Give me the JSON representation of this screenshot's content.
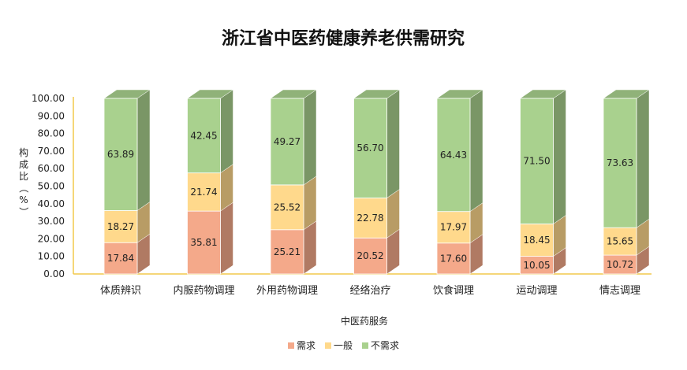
{
  "chart_data": {
    "type": "bar",
    "stacked": true,
    "style": "3d",
    "title": "浙江省中医药健康养老供需研究",
    "xlabel": "中医药服务",
    "ylabel": "构成比（%）",
    "ylim": [
      0,
      100
    ],
    "yticks": [
      "0.00",
      "10.00",
      "20.00",
      "30.00",
      "40.00",
      "50.00",
      "60.00",
      "70.00",
      "80.00",
      "90.00",
      "100.00"
    ],
    "grid": false,
    "legend_position": "bottom",
    "categories": [
      "体质辨识",
      "内服药物调理",
      "外用药物调理",
      "经络治疗",
      "饮食调理",
      "运动调理",
      "情志调理"
    ],
    "series": [
      {
        "name": "需求",
        "values": [
          17.84,
          35.81,
          25.21,
          20.52,
          17.6,
          10.05,
          10.72
        ],
        "labels": [
          "17.84",
          "35.81",
          "25.21",
          "20.52",
          "17.60",
          "10.05",
          "10.72"
        ],
        "color": "#f4a98a"
      },
      {
        "name": "一般",
        "values": [
          18.27,
          21.74,
          25.52,
          22.78,
          17.97,
          18.45,
          15.65
        ],
        "labels": [
          "18.27",
          "21.74",
          "25.52",
          "22.78",
          "17.97",
          "18.45",
          "15.65"
        ],
        "color": "#ffd98c"
      },
      {
        "name": "不需求",
        "values": [
          63.89,
          42.45,
          49.27,
          56.7,
          64.43,
          71.5,
          73.63
        ],
        "labels": [
          "63.89",
          "42.45",
          "49.27",
          "56.70",
          "64.43",
          "71.50",
          "73.63"
        ],
        "color": "#a9d18e"
      }
    ],
    "axis_color": "#f2c94c"
  }
}
